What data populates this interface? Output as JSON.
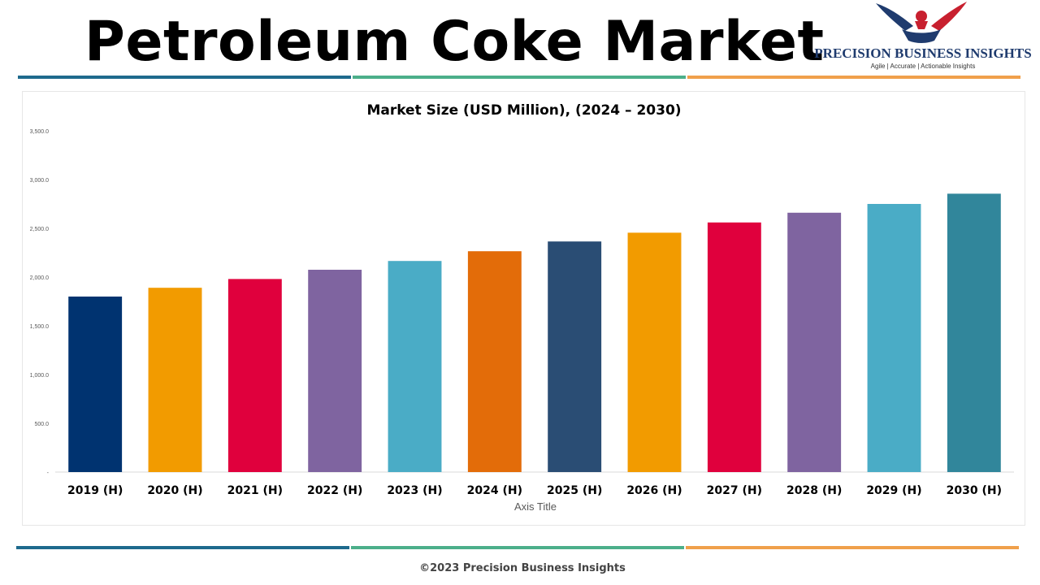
{
  "header": {
    "title": "Petroleum Coke Market",
    "logo": {
      "name": "PRECISION BUSINESS INSIGHTS",
      "tagline": "Agile | Accurate | Actionable Insights",
      "icon": "eagle-handshake-logo-icon"
    }
  },
  "rule_colors": [
    "#1e6a8d",
    "#4caf8a",
    "#f0a04b"
  ],
  "chart_data": {
    "type": "bar",
    "title": "Market Size (USD Million), (2024 – 2030)",
    "xlabel": "Axis Title",
    "ylabel": "",
    "ylim": [
      0,
      3500
    ],
    "yticks": [
      0,
      500,
      1000,
      1500,
      2000,
      2500,
      3000,
      3500
    ],
    "ytick_labels": [
      "-",
      "500.0",
      "1,000.0",
      "1,500.0",
      "2,000.0",
      "2,500.0",
      "3,000.0",
      "3,500.0"
    ],
    "categories": [
      "2019 (H)",
      "2020 (H)",
      "2021 (H)",
      "2022 (H)",
      "2023 (H)",
      "2024 (H)",
      "2025 (H)",
      "2026 (H)",
      "2027 (H)",
      "2028 (H)",
      "2029 (H)",
      "2030 (H)"
    ],
    "values": [
      1800,
      1890,
      1980,
      2075,
      2165,
      2265,
      2365,
      2455,
      2560,
      2660,
      2750,
      2855
    ],
    "colors": [
      "#003370",
      "#f29b00",
      "#e0003d",
      "#7f64a0",
      "#4aacc6",
      "#e36c09",
      "#2a4d74",
      "#f29b00",
      "#e0003d",
      "#7f64a0",
      "#4aacc6",
      "#31869b"
    ],
    "grid": false,
    "legend": "none"
  },
  "footer": {
    "copyright": "©2023 Precision Business Insights"
  }
}
